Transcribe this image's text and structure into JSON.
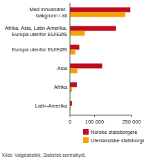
{
  "chart_data": {
    "type": "bar",
    "orientation": "horizontal",
    "categories": [
      "Med innvandrer-\nbakgrunn i alt",
      "Afrika, Asia, Latin-Amerika,\nEuropa utenfor EU/EØS",
      "Europa utenfor EU/EØS",
      "Asia",
      "Afrika",
      "Latin-Amerika"
    ],
    "series": [
      {
        "name": "Norske statsborgere",
        "color": "#c00d1e",
        "values": [
          245000,
          187000,
          38000,
          131000,
          28000,
          8000
        ]
      },
      {
        "name": "Utenlandske statsborgere",
        "color": "#f5a300",
        "values": [
          225000,
          60000,
          22000,
          30000,
          8000,
          3000
        ]
      }
    ],
    "ylim": [
      0,
      250000
    ],
    "yticks": [
      0,
      {
        "value": 100000,
        "label": "100 000"
      },
      {
        "value": 250000,
        "label": "250 000"
      }
    ],
    "grid": false,
    "legend": "bottom",
    "source": "Kilde: Valgstatistikk, Statistisk sentralbyrå."
  }
}
